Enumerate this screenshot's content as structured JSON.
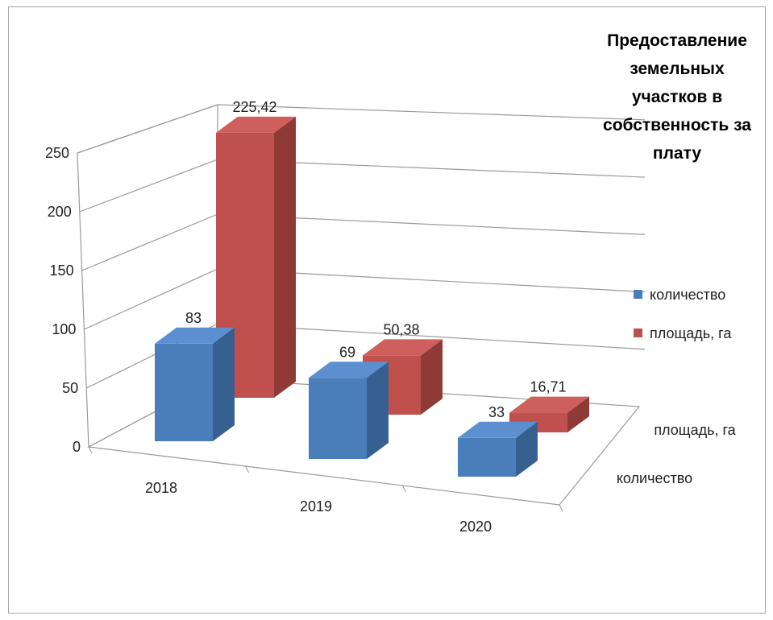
{
  "chart_data": {
    "type": "bar",
    "title_lines": [
      "Предоставление",
      "земельных",
      "участков  в",
      "собственность за",
      "плату"
    ],
    "categories": [
      "2018",
      "2019",
      "2020"
    ],
    "series": [
      {
        "name": "количество",
        "values": [
          83,
          69,
          33
        ],
        "labels": [
          "83",
          "69",
          "33"
        ],
        "color": "#4a7ebb"
      },
      {
        "name": "площадь, га",
        "values": [
          225.42,
          50.38,
          16.71
        ],
        "labels": [
          "225,42",
          "50,38",
          "16,71"
        ],
        "color": "#c0504d"
      }
    ],
    "y_ticks": [
      "0",
      "50",
      "100",
      "150",
      "200",
      "250"
    ],
    "ylim": [
      0,
      250
    ],
    "depth_labels": [
      "количество",
      "площадь, га"
    ],
    "legend": [
      "количество",
      "площадь, га"
    ],
    "legend_position": "right",
    "grid": true,
    "three_d": true
  }
}
